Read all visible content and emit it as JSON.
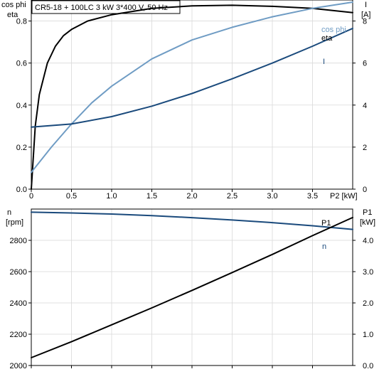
{
  "chart_data": [
    {
      "type": "line",
      "title": "CR5-18 + 100LC   3 kW   3*400 V, 50 Hz",
      "xlabel": "P2 [kW]",
      "xlim": [
        0,
        4.0
      ],
      "x_ticks": [
        0,
        0.5,
        1.0,
        1.5,
        2.0,
        2.5,
        3.0,
        3.5
      ],
      "x_tick_labels": [
        "0",
        "0.5",
        "1.0",
        "1.5",
        "2.0",
        "2.5",
        "3.0",
        "3.5"
      ],
      "left_axis": {
        "label_lines": [
          "cos phi",
          "eta"
        ],
        "ylim": [
          0,
          0.9
        ],
        "ticks": [
          0,
          0.2,
          0.4,
          0.6,
          0.8
        ],
        "tick_labels": [
          "0.0",
          "0.2",
          "0.4",
          "0.6",
          "0.8"
        ]
      },
      "right_axis": {
        "label_lines": [
          "I",
          "[A]"
        ],
        "ylim": [
          0,
          9
        ],
        "ticks": [
          0,
          2,
          4,
          6,
          8
        ],
        "tick_labels": [
          "0",
          "2",
          "4",
          "6",
          "8"
        ]
      },
      "grid": true,
      "series": [
        {
          "name": "eta",
          "axis": "left",
          "color": "#000000",
          "x": [
            0,
            0.05,
            0.1,
            0.2,
            0.3,
            0.4,
            0.5,
            0.7,
            1.0,
            1.5,
            2.0,
            2.5,
            3.0,
            3.5,
            4.0
          ],
          "y": [
            0,
            0.3,
            0.45,
            0.6,
            0.68,
            0.73,
            0.76,
            0.8,
            0.83,
            0.86,
            0.872,
            0.875,
            0.87,
            0.86,
            0.84
          ]
        },
        {
          "name": "cos phi",
          "axis": "left",
          "color": "#6f9cc4",
          "x": [
            0,
            0.25,
            0.5,
            0.75,
            1.0,
            1.5,
            2.0,
            2.5,
            3.0,
            3.5,
            4.0
          ],
          "y": [
            0.08,
            0.2,
            0.31,
            0.41,
            0.49,
            0.62,
            0.71,
            0.77,
            0.82,
            0.86,
            0.89
          ]
        },
        {
          "name": "I",
          "axis": "right",
          "color": "#1a4a7c",
          "x": [
            0,
            0.5,
            1.0,
            1.5,
            2.0,
            2.5,
            3.0,
            3.5,
            4.0
          ],
          "y": [
            2.95,
            3.1,
            3.45,
            3.95,
            4.55,
            5.25,
            6.0,
            6.8,
            7.65
          ]
        }
      ]
    },
    {
      "type": "line",
      "xlim": [
        0,
        4.0
      ],
      "left_axis": {
        "label_lines": [
          "n",
          "[rpm]"
        ],
        "ylim": [
          2000,
          3000
        ],
        "ticks": [
          2000,
          2200,
          2400,
          2600,
          2800
        ],
        "tick_labels": [
          "2000",
          "2200",
          "2400",
          "2600",
          "2800"
        ]
      },
      "right_axis": {
        "label_lines": [
          "P1",
          "[kW]"
        ],
        "ylim": [
          0,
          5
        ],
        "ticks": [
          0,
          1,
          2,
          3,
          4
        ],
        "tick_labels": [
          "0.0",
          "1.0",
          "2.0",
          "3.0",
          "4.0"
        ]
      },
      "grid": true,
      "series": [
        {
          "name": "n",
          "axis": "left",
          "color": "#1a4a7c",
          "x": [
            0,
            0.5,
            1.0,
            1.5,
            2.0,
            2.5,
            3.0,
            3.5,
            4.0
          ],
          "y": [
            2980,
            2975,
            2968,
            2958,
            2945,
            2930,
            2913,
            2893,
            2870
          ]
        },
        {
          "name": "P1",
          "axis": "right",
          "color": "#000000",
          "x": [
            0,
            0.5,
            1.0,
            1.5,
            2.0,
            2.5,
            3.0,
            3.5,
            4.0
          ],
          "y": [
            0.25,
            0.76,
            1.3,
            1.84,
            2.4,
            2.97,
            3.55,
            4.15,
            4.73
          ]
        }
      ]
    }
  ]
}
